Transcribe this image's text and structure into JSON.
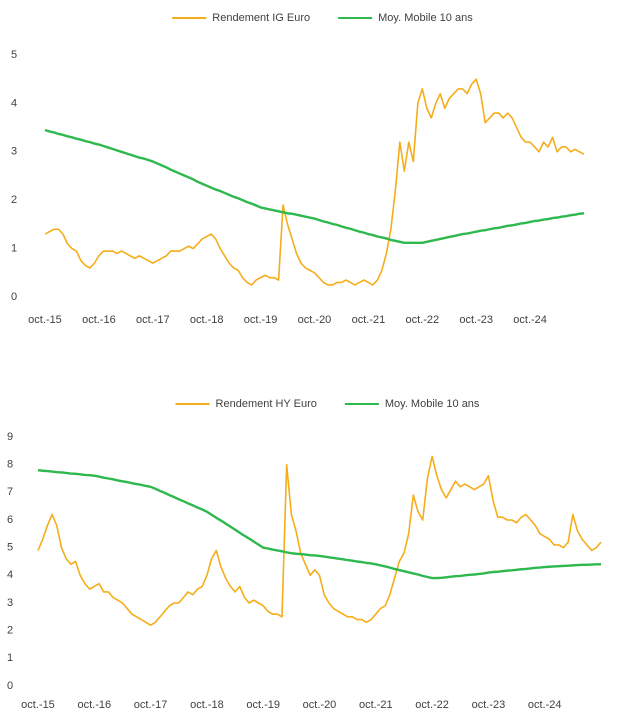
{
  "chart_data": [
    {
      "type": "line",
      "legend": "top",
      "categories": [
        "oct.-15",
        null,
        null,
        null,
        null,
        null,
        null,
        null,
        null,
        null,
        null,
        null,
        "oct.-16",
        null,
        null,
        null,
        null,
        null,
        null,
        null,
        null,
        null,
        null,
        null,
        "oct.-17",
        null,
        null,
        null,
        null,
        null,
        null,
        null,
        null,
        null,
        null,
        null,
        "oct.-18",
        null,
        null,
        null,
        null,
        null,
        null,
        null,
        null,
        null,
        null,
        null,
        "oct.-19",
        null,
        null,
        null,
        null,
        null,
        null,
        null,
        null,
        null,
        null,
        null,
        "oct.-20",
        null,
        null,
        null,
        null,
        null,
        null,
        null,
        null,
        null,
        null,
        null,
        "oct.-21",
        null,
        null,
        null,
        null,
        null,
        null,
        null,
        null,
        null,
        null,
        null,
        "oct.-22",
        null,
        null,
        null,
        null,
        null,
        null,
        null,
        null,
        null,
        null,
        null,
        "oct.-23",
        null,
        null,
        null,
        null,
        null,
        null,
        null,
        null,
        null,
        null,
        null,
        "oct.-24",
        null,
        null,
        null,
        null,
        null,
        null,
        null,
        null,
        null,
        null,
        null,
        null
      ],
      "ylim": [
        0,
        5
      ],
      "yticks": [
        0,
        1,
        2,
        3,
        4,
        5
      ],
      "series": [
        {
          "name": "Rendement IG Euro",
          "color": "#f5ad1a",
          "values": [
            1.3,
            1.35,
            1.4,
            1.4,
            1.3,
            1.1,
            1.0,
            0.95,
            0.75,
            0.65,
            0.6,
            0.7,
            0.85,
            0.95,
            0.95,
            0.95,
            0.9,
            0.95,
            0.9,
            0.85,
            0.8,
            0.85,
            0.8,
            0.75,
            0.7,
            0.75,
            0.8,
            0.85,
            0.95,
            0.95,
            0.95,
            1.0,
            1.05,
            1.0,
            1.1,
            1.2,
            1.25,
            1.3,
            1.2,
            1.0,
            0.85,
            0.7,
            0.6,
            0.55,
            0.4,
            0.3,
            0.25,
            0.35,
            0.4,
            0.45,
            0.4,
            0.4,
            0.35,
            1.9,
            1.5,
            1.2,
            0.9,
            0.7,
            0.6,
            0.55,
            0.5,
            0.4,
            0.3,
            0.25,
            0.25,
            0.3,
            0.3,
            0.35,
            0.3,
            0.25,
            0.3,
            0.35,
            0.3,
            0.25,
            0.35,
            0.55,
            0.9,
            1.4,
            2.2,
            3.2,
            2.6,
            3.2,
            2.8,
            4.0,
            4.3,
            3.9,
            3.7,
            4.0,
            4.2,
            3.9,
            4.1,
            4.2,
            4.3,
            4.3,
            4.2,
            4.4,
            4.5,
            4.2,
            3.6,
            3.7,
            3.8,
            3.8,
            3.7,
            3.8,
            3.7,
            3.5,
            3.3,
            3.2,
            3.2,
            3.1,
            3.0,
            3.2,
            3.1,
            3.3,
            3.0,
            3.1,
            3.1,
            3.0,
            3.05,
            3.0,
            2.95
          ]
        },
        {
          "name": "Moy. Mobile 10 ans",
          "color": "#2eb84e",
          "values": [
            3.45,
            3.42,
            3.4,
            3.37,
            3.35,
            3.32,
            3.3,
            3.27,
            3.25,
            3.22,
            3.2,
            3.17,
            3.15,
            3.12,
            3.09,
            3.06,
            3.03,
            3.0,
            2.97,
            2.94,
            2.91,
            2.88,
            2.86,
            2.83,
            2.8,
            2.76,
            2.72,
            2.68,
            2.63,
            2.59,
            2.55,
            2.51,
            2.47,
            2.43,
            2.38,
            2.34,
            2.3,
            2.26,
            2.22,
            2.19,
            2.15,
            2.11,
            2.07,
            2.04,
            2.0,
            1.96,
            1.93,
            1.89,
            1.85,
            1.83,
            1.81,
            1.79,
            1.77,
            1.75,
            1.73,
            1.72,
            1.7,
            1.68,
            1.66,
            1.64,
            1.62,
            1.59,
            1.56,
            1.54,
            1.51,
            1.49,
            1.46,
            1.43,
            1.41,
            1.38,
            1.35,
            1.33,
            1.3,
            1.28,
            1.25,
            1.23,
            1.21,
            1.18,
            1.16,
            1.14,
            1.12,
            1.12,
            1.12,
            1.12,
            1.12,
            1.14,
            1.16,
            1.18,
            1.2,
            1.22,
            1.24,
            1.26,
            1.28,
            1.3,
            1.31,
            1.33,
            1.35,
            1.37,
            1.38,
            1.4,
            1.42,
            1.43,
            1.45,
            1.47,
            1.48,
            1.5,
            1.52,
            1.53,
            1.55,
            1.57,
            1.58,
            1.6,
            1.61,
            1.63,
            1.64,
            1.66,
            1.67,
            1.69,
            1.7,
            1.72,
            1.73
          ]
        }
      ]
    },
    {
      "type": "line",
      "legend": "top",
      "categories": [
        "oct.-15",
        null,
        null,
        null,
        null,
        null,
        null,
        null,
        null,
        null,
        null,
        null,
        "oct.-16",
        null,
        null,
        null,
        null,
        null,
        null,
        null,
        null,
        null,
        null,
        null,
        "oct.-17",
        null,
        null,
        null,
        null,
        null,
        null,
        null,
        null,
        null,
        null,
        null,
        "oct.-18",
        null,
        null,
        null,
        null,
        null,
        null,
        null,
        null,
        null,
        null,
        null,
        "oct.-19",
        null,
        null,
        null,
        null,
        null,
        null,
        null,
        null,
        null,
        null,
        null,
        "oct.-20",
        null,
        null,
        null,
        null,
        null,
        null,
        null,
        null,
        null,
        null,
        null,
        "oct.-21",
        null,
        null,
        null,
        null,
        null,
        null,
        null,
        null,
        null,
        null,
        null,
        "oct.-22",
        null,
        null,
        null,
        null,
        null,
        null,
        null,
        null,
        null,
        null,
        null,
        "oct.-23",
        null,
        null,
        null,
        null,
        null,
        null,
        null,
        null,
        null,
        null,
        null,
        "oct.-24",
        null,
        null,
        null,
        null,
        null,
        null,
        null,
        null,
        null,
        null,
        null,
        null
      ],
      "ylim": [
        0,
        9
      ],
      "yticks": [
        0,
        1,
        2,
        3,
        4,
        5,
        6,
        7,
        8,
        9
      ],
      "series": [
        {
          "name": "Rendement HY Euro",
          "color": "#f5ad1a",
          "values": [
            4.9,
            5.3,
            5.8,
            6.2,
            5.8,
            5.0,
            4.6,
            4.4,
            4.5,
            4.0,
            3.7,
            3.5,
            3.6,
            3.7,
            3.4,
            3.4,
            3.2,
            3.1,
            3.0,
            2.8,
            2.6,
            2.5,
            2.4,
            2.3,
            2.2,
            2.3,
            2.5,
            2.7,
            2.9,
            3.0,
            3.0,
            3.2,
            3.4,
            3.3,
            3.5,
            3.6,
            4.0,
            4.6,
            4.9,
            4.3,
            3.9,
            3.6,
            3.4,
            3.6,
            3.2,
            3.0,
            3.1,
            3.0,
            2.9,
            2.7,
            2.6,
            2.6,
            2.5,
            8.0,
            6.2,
            5.6,
            4.8,
            4.4,
            4.0,
            4.2,
            4.0,
            3.3,
            3.0,
            2.8,
            2.7,
            2.6,
            2.5,
            2.5,
            2.4,
            2.4,
            2.3,
            2.4,
            2.6,
            2.8,
            2.9,
            3.3,
            3.9,
            4.5,
            4.8,
            5.5,
            6.9,
            6.3,
            6.0,
            7.5,
            8.3,
            7.6,
            7.1,
            6.8,
            7.1,
            7.4,
            7.2,
            7.3,
            7.2,
            7.1,
            7.2,
            7.3,
            7.6,
            6.7,
            6.1,
            6.1,
            6.0,
            6.0,
            5.9,
            6.1,
            6.2,
            6.0,
            5.8,
            5.5,
            5.4,
            5.3,
            5.1,
            5.1,
            5.0,
            5.2,
            6.2,
            5.6,
            5.3,
            5.1,
            4.9,
            5.0,
            5.2
          ]
        },
        {
          "name": "Moy. Mobile 10 ans",
          "color": "#2eb84e",
          "values": [
            7.8,
            7.78,
            7.77,
            7.75,
            7.73,
            7.72,
            7.7,
            7.68,
            7.67,
            7.65,
            7.63,
            7.62,
            7.6,
            7.57,
            7.53,
            7.5,
            7.47,
            7.43,
            7.4,
            7.37,
            7.33,
            7.3,
            7.27,
            7.23,
            7.2,
            7.13,
            7.05,
            6.98,
            6.9,
            6.83,
            6.75,
            6.68,
            6.6,
            6.53,
            6.45,
            6.38,
            6.3,
            6.19,
            6.08,
            5.98,
            5.87,
            5.76,
            5.65,
            5.54,
            5.43,
            5.33,
            5.22,
            5.11,
            5.0,
            4.97,
            4.93,
            4.9,
            4.87,
            4.83,
            4.8,
            4.78,
            4.77,
            4.75,
            4.73,
            4.72,
            4.7,
            4.68,
            4.65,
            4.63,
            4.6,
            4.58,
            4.55,
            4.53,
            4.5,
            4.48,
            4.45,
            4.43,
            4.4,
            4.36,
            4.32,
            4.28,
            4.23,
            4.19,
            4.15,
            4.11,
            4.07,
            4.03,
            3.98,
            3.94,
            3.9,
            3.9,
            3.91,
            3.93,
            3.95,
            3.97,
            3.98,
            4.0,
            4.02,
            4.03,
            4.05,
            4.07,
            4.1,
            4.12,
            4.13,
            4.15,
            4.17,
            4.18,
            4.2,
            4.22,
            4.23,
            4.25,
            4.27,
            4.28,
            4.3,
            4.31,
            4.32,
            4.33,
            4.34,
            4.35,
            4.36,
            4.37,
            4.38,
            4.38,
            4.39,
            4.4,
            4.4
          ]
        }
      ]
    }
  ]
}
